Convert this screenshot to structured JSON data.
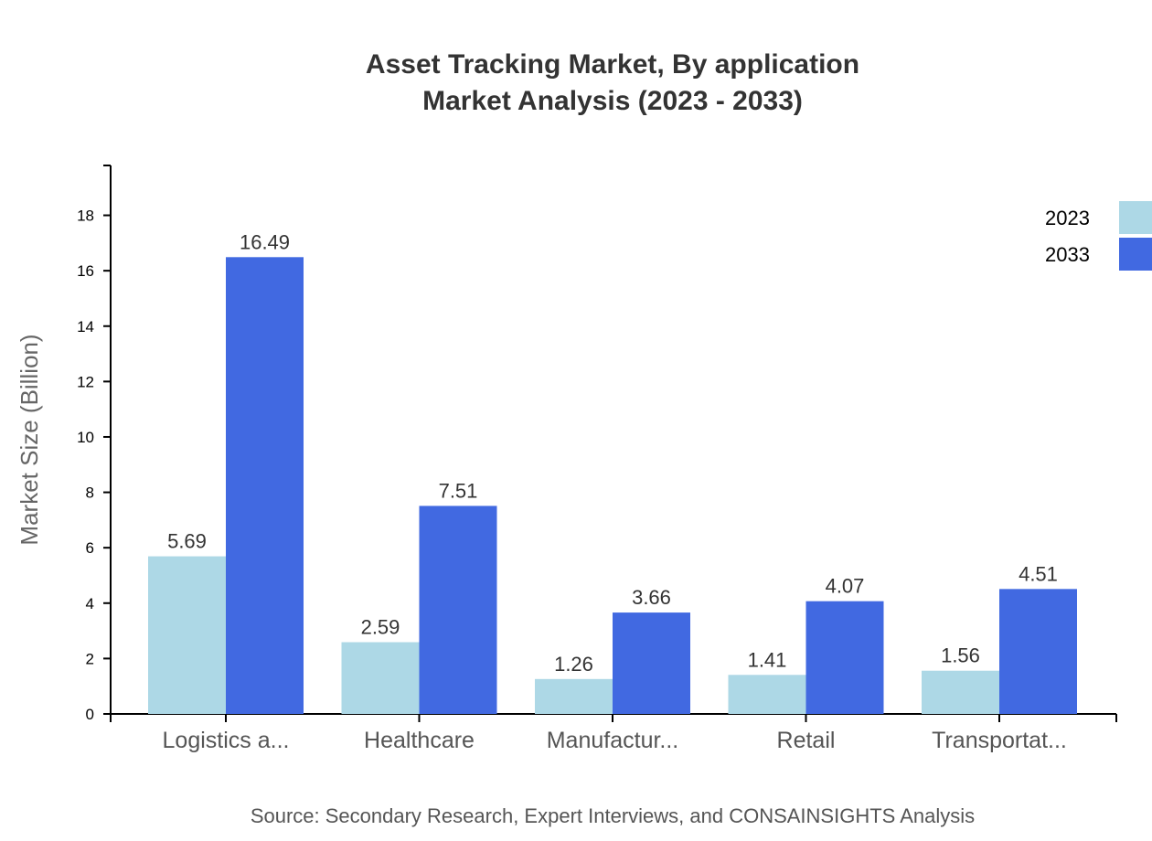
{
  "chart_data": {
    "type": "bar",
    "title": "Asset Tracking Market, By application",
    "subtitle": "Market Analysis (2023 - 2033)",
    "xlabel": "",
    "ylabel": "Market Size (Billion)",
    "ylim": [
      0,
      19.8
    ],
    "yticks": [
      0,
      2,
      4,
      6,
      8,
      10,
      12,
      14,
      16,
      18
    ],
    "categories": [
      "Logistics a...",
      "Healthcare",
      "Manufactur...",
      "Retail",
      "Transportat..."
    ],
    "series": [
      {
        "name": "2023",
        "color": "#add8e6",
        "values": [
          5.69,
          2.59,
          1.26,
          1.41,
          1.56
        ]
      },
      {
        "name": "2033",
        "color": "#4169e1",
        "values": [
          16.49,
          7.51,
          3.66,
          4.07,
          4.51
        ]
      }
    ],
    "legend": "top-right",
    "grid": false,
    "source": "Source: Secondary Research, Expert Interviews, and CONSAINSIGHTS Analysis"
  }
}
